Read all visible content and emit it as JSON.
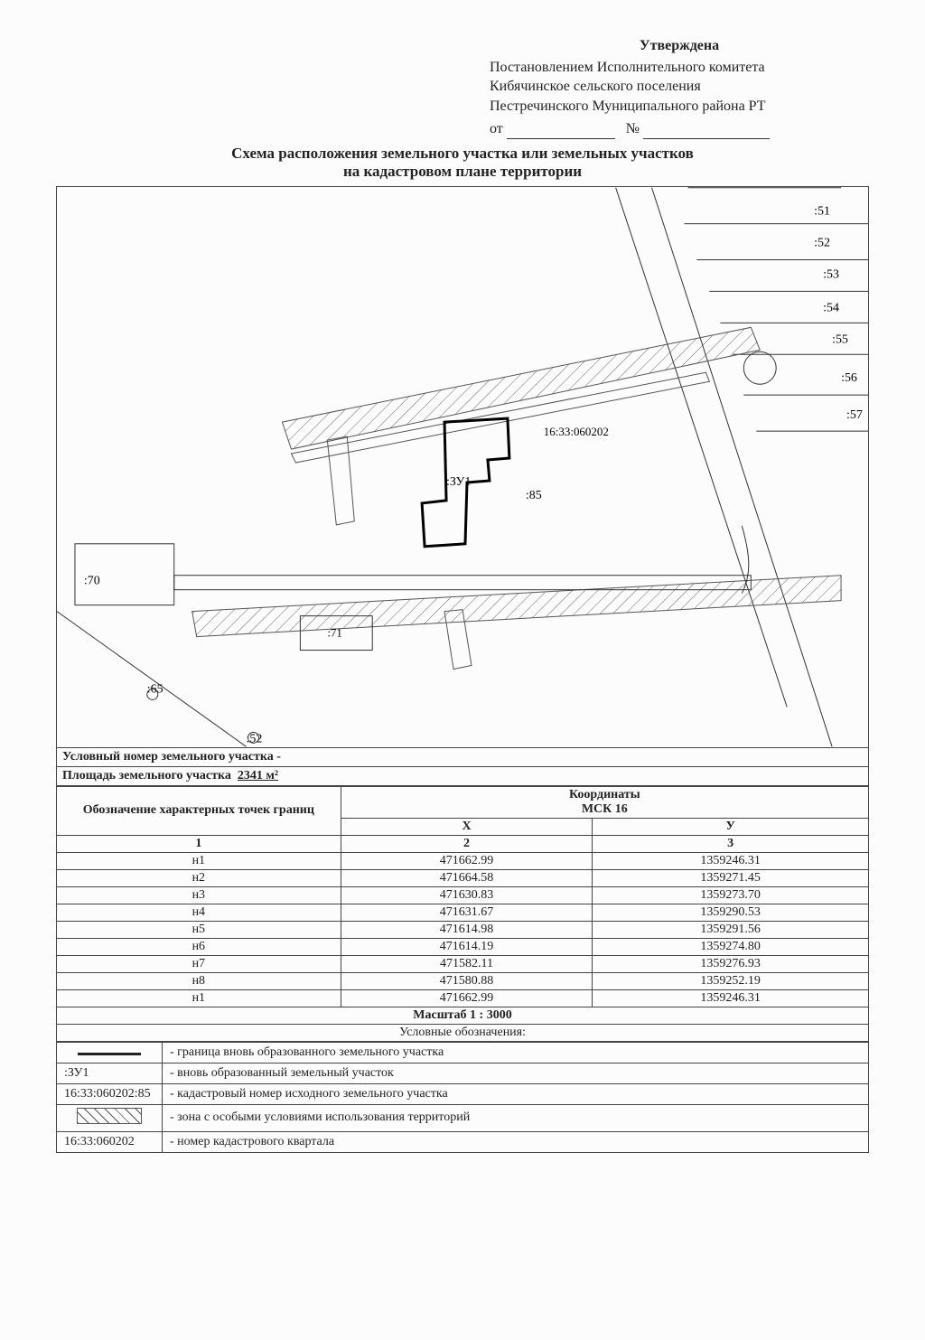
{
  "header": {
    "approved": "Утверждена",
    "line1": "Постановлением Исполнительного комитета",
    "line2": "Кибячинское сельского поселения",
    "line3": "Пестречинского Муниципального района РТ",
    "ot": "от",
    "num": "№"
  },
  "title": "Схема расположения земельного участка или земельных участков",
  "subtitle": "на кадастровом плане территории",
  "map": {
    "parcel_labels": [
      ":51",
      ":52",
      ":53",
      ":54",
      ":55",
      ":56",
      ":57",
      "16:33:060202",
      ":ЗУ1",
      ":85",
      ":70",
      ":65",
      ":52",
      ":71"
    ]
  },
  "meta": {
    "cond_number_label": "Условный номер земельного участка -",
    "area_label": "Площадь земельного участка",
    "area_value": "2341 м²"
  },
  "coord_table": {
    "left_header": "Обозначение характерных точек границ",
    "right_header_top": "Координаты",
    "right_header_sub": "МСК 16",
    "col1": "1",
    "col2": "2",
    "col3": "3",
    "colX": "X",
    "colY": "У",
    "rows": [
      {
        "pt": "н1",
        "x": "471662.99",
        "y": "1359246.31"
      },
      {
        "pt": "н2",
        "x": "471664.58",
        "y": "1359271.45"
      },
      {
        "pt": "н3",
        "x": "471630.83",
        "y": "1359273.70"
      },
      {
        "pt": "н4",
        "x": "471631.67",
        "y": "1359290.53"
      },
      {
        "pt": "н5",
        "x": "471614.98",
        "y": "1359291.56"
      },
      {
        "pt": "н6",
        "x": "471614.19",
        "y": "1359274.80"
      },
      {
        "pt": "н7",
        "x": "471582.11",
        "y": "1359276.93"
      },
      {
        "pt": "н8",
        "x": "471580.88",
        "y": "1359252.19"
      },
      {
        "pt": "н1",
        "x": "471662.99",
        "y": "1359246.31"
      }
    ]
  },
  "scale_label": "Масштаб 1 :  3000",
  "legend_title": "Условные обозначения:",
  "legend": [
    {
      "sym": "boundary",
      "text": "- граница вновь образованного земельного участка"
    },
    {
      "sym": ":ЗУ1",
      "text": "- вновь образованный земельный участок"
    },
    {
      "sym": "16:33:060202:85",
      "text": "- кадастровый номер исходного земельного участка"
    },
    {
      "sym": "hatch",
      "text": "- зона с особыми условиями использования территорий"
    },
    {
      "sym": "16:33:060202",
      "text": "- номер кадастрового квартала"
    }
  ]
}
